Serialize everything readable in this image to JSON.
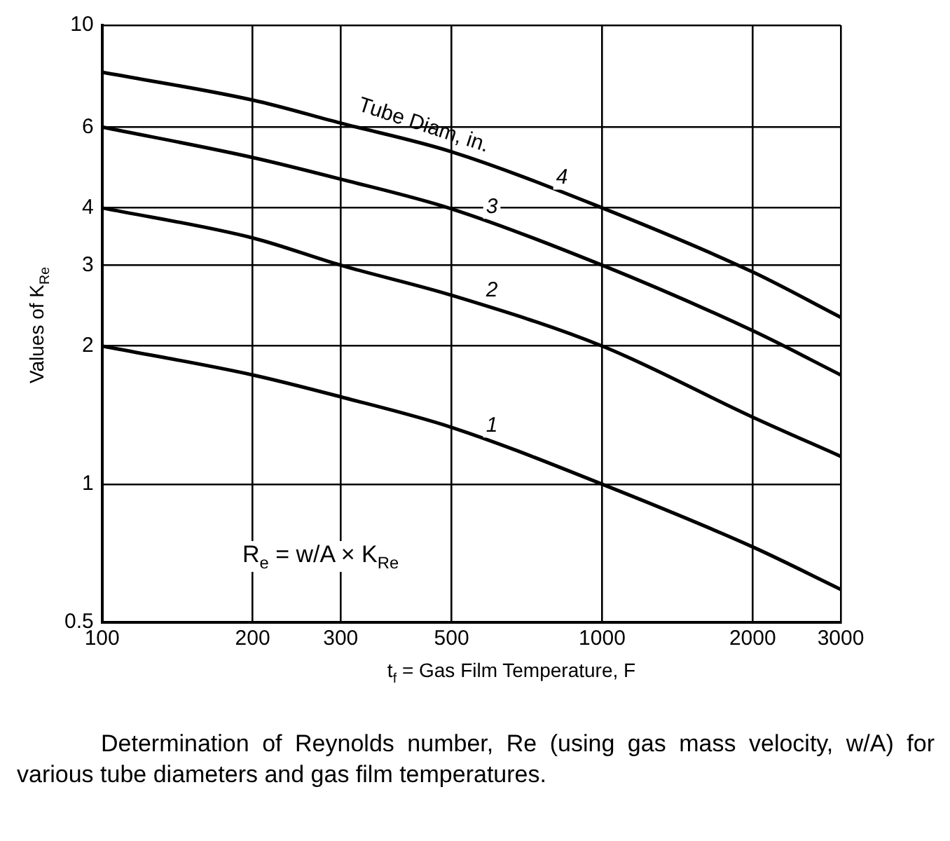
{
  "chart_data": {
    "type": "line",
    "xlabel": "t$_{f}$ = Gas Film Temperature, F",
    "ylabel": "Values of K$_{Re}$",
    "x": [
      100,
      200,
      300,
      500,
      1000,
      2000,
      3000
    ],
    "series": [
      {
        "name": "1",
        "color": "#000000",
        "values": [
          2.0,
          1.73,
          1.55,
          1.33,
          1.0,
          0.73,
          0.59
        ]
      },
      {
        "name": "2",
        "color": "#000000",
        "values": [
          4.0,
          3.44,
          3.0,
          2.58,
          2.0,
          1.4,
          1.15
        ]
      },
      {
        "name": "3",
        "color": "#000000",
        "values": [
          6.0,
          5.15,
          4.62,
          3.98,
          3.0,
          2.16,
          1.73
        ]
      },
      {
        "name": "4",
        "color": "#000000",
        "values": [
          7.9,
          6.87,
          6.12,
          5.3,
          4.0,
          2.9,
          2.31
        ]
      }
    ],
    "log": "xy",
    "xlim": [
      100,
      3000
    ],
    "ylim": [
      0.5,
      10
    ],
    "xticks": [
      100,
      200,
      300,
      500,
      1000,
      2000,
      3000
    ],
    "yticks": [
      0.5,
      1,
      2,
      3,
      4,
      6,
      10
    ],
    "grid": true,
    "legend": false,
    "marker": "none",
    "line_style": "solid",
    "annotations": [
      "Tube Diam, in.",
      "R$_{e}$ = w/A × K$_{Re}$",
      "Determination of Reynolds number, Re (using gas mass velocity, w/A) for various tube diameters and gas film temperatures."
    ]
  }
}
